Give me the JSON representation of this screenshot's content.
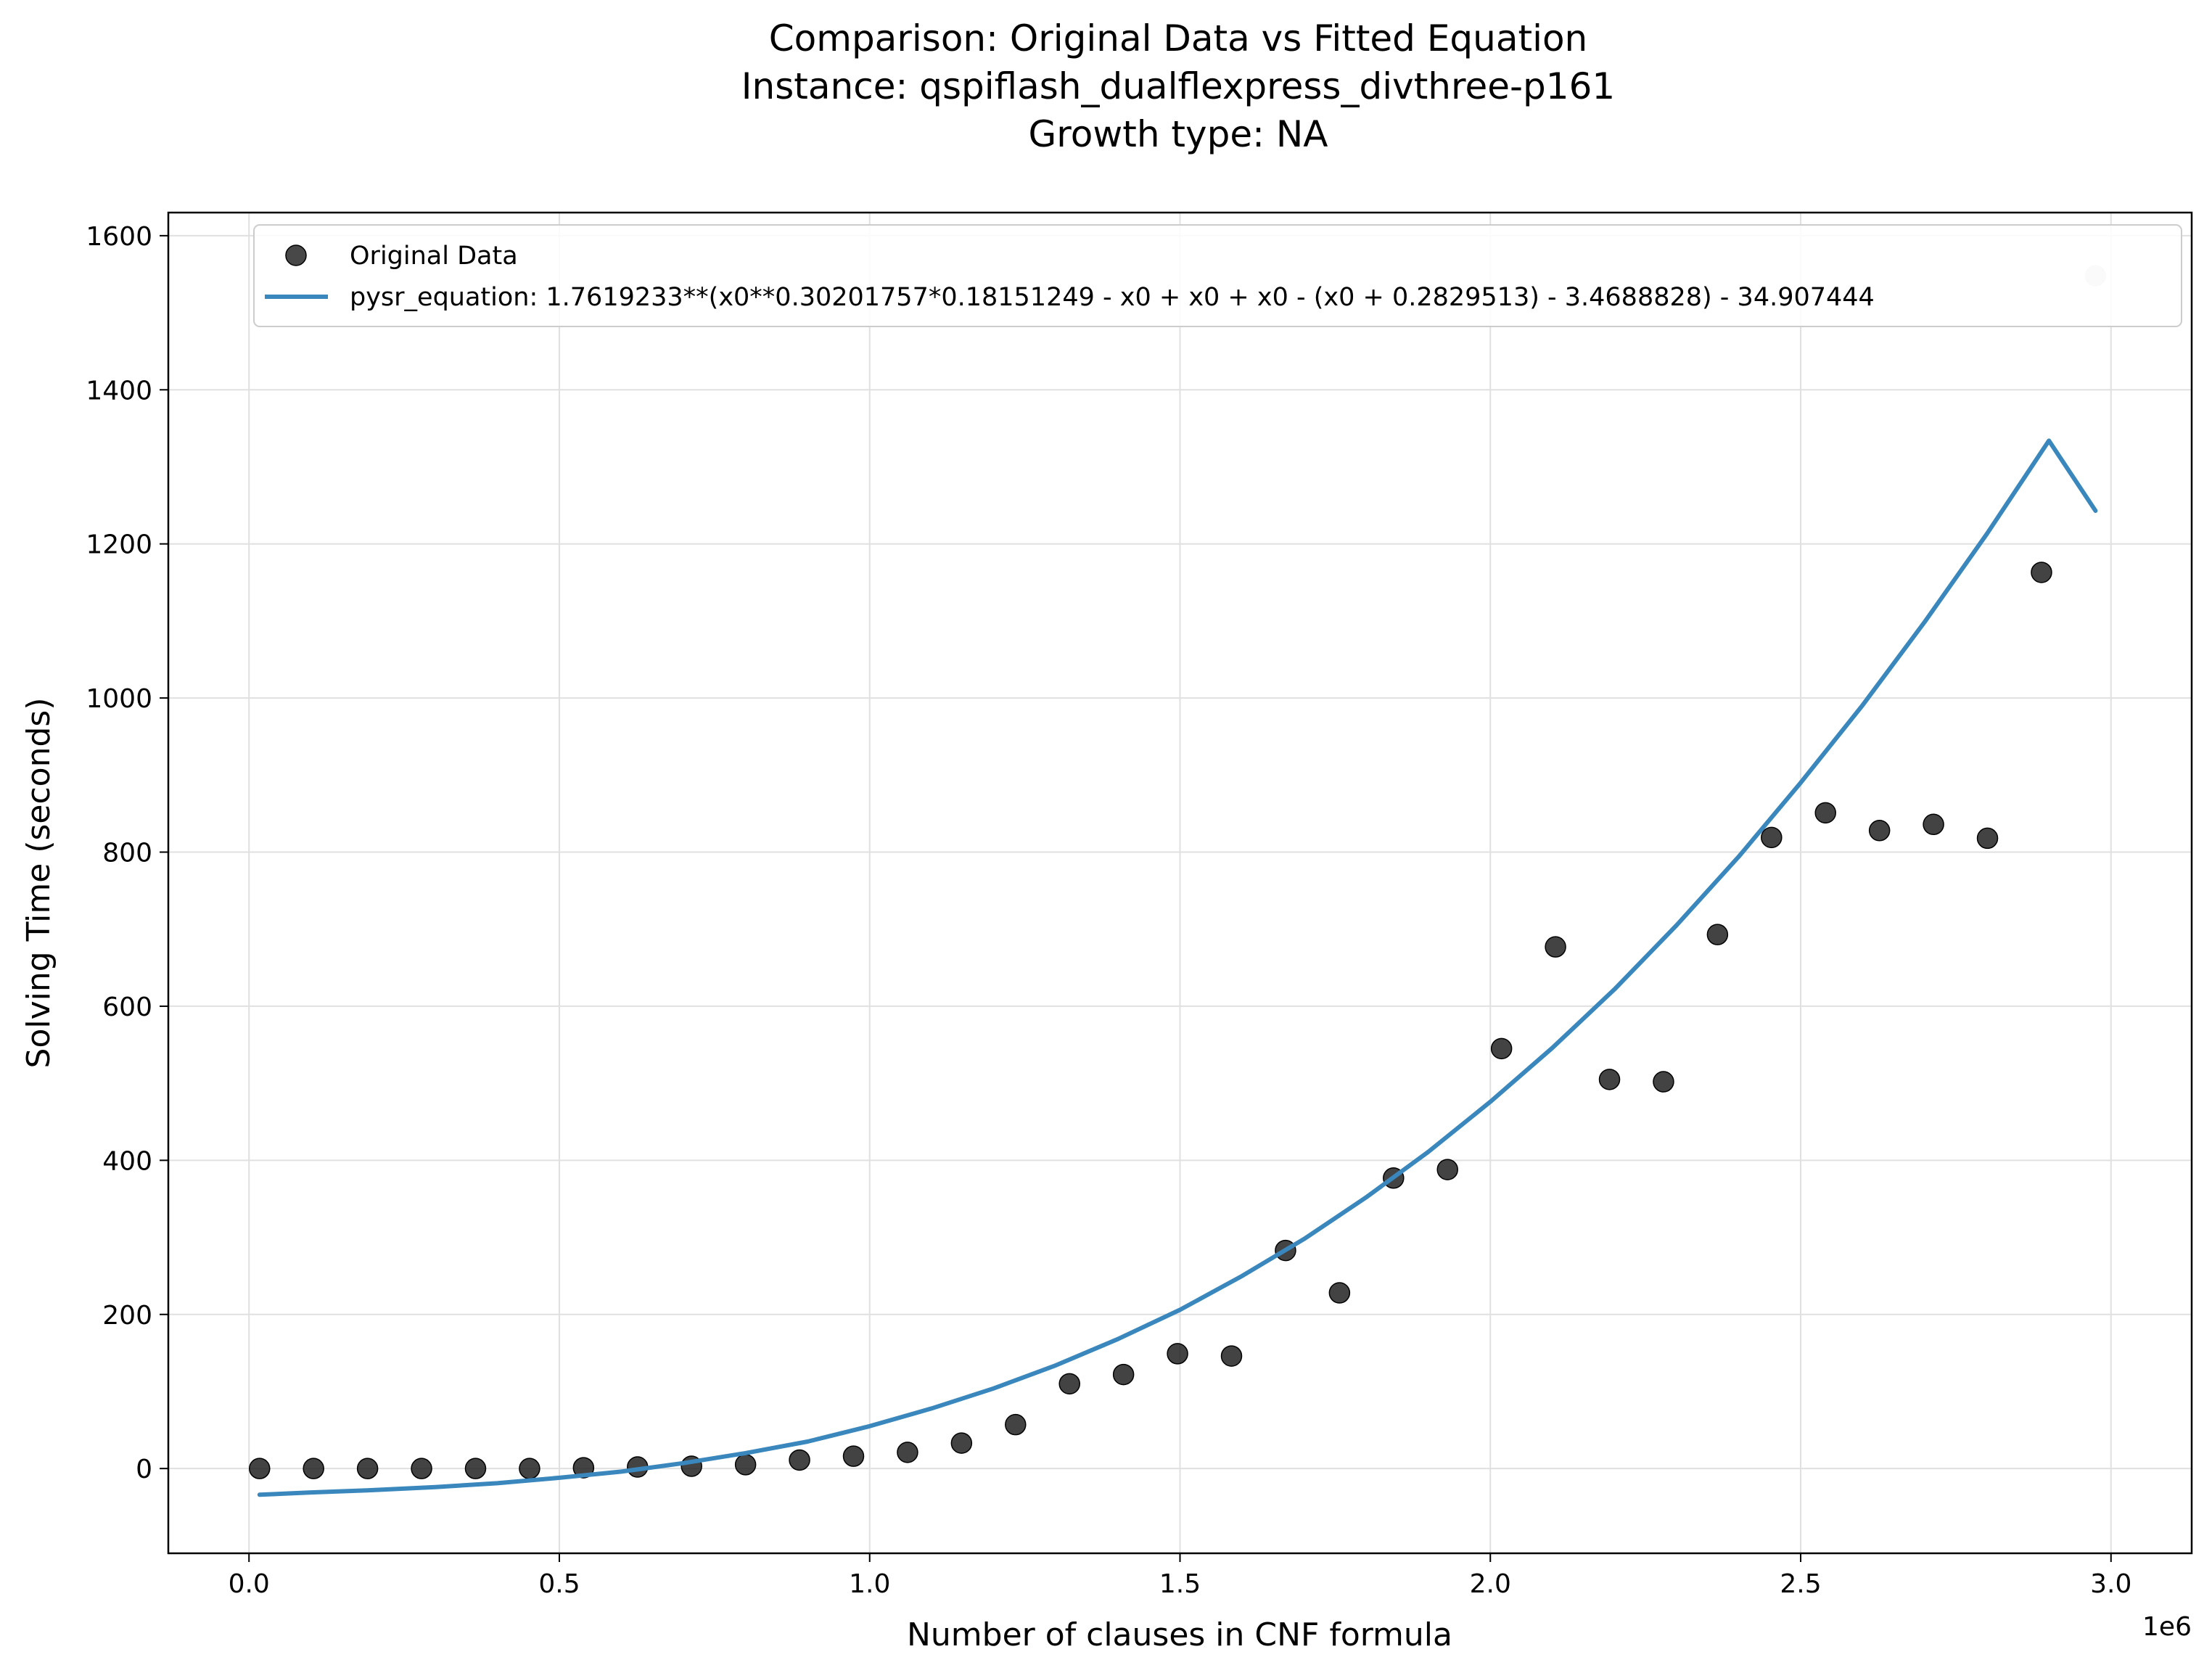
{
  "chart_data": {
    "type": "scatter",
    "title": [
      "Comparison: Original Data vs Fitted Equation",
      "Instance: qspiflash_dualflexpress_divthree-p161",
      "Growth type: NA"
    ],
    "xlabel": "Number of clauses in CNF formula",
    "ylabel": "Solving Time (seconds)",
    "x_offset_label": "1e6",
    "xlim": [
      -0.13,
      3.13
    ],
    "ylim": [
      -110,
      1630
    ],
    "xticks": [
      0.0,
      0.5,
      1.0,
      1.5,
      2.0,
      2.5,
      3.0
    ],
    "xtick_labels": [
      "0.0",
      "0.5",
      "1.0",
      "1.5",
      "2.0",
      "2.5",
      "3.0"
    ],
    "yticks": [
      0,
      200,
      400,
      600,
      800,
      1000,
      1200,
      1400,
      1600
    ],
    "ytick_labels": [
      "0",
      "200",
      "400",
      "600",
      "800",
      "1000",
      "1200",
      "1400",
      "1600"
    ],
    "grid": true,
    "legend_position": "top-left",
    "colors": {
      "scatter": "#1a1a1a",
      "line": "#3a87bd",
      "grid": "#e0e0e0"
    },
    "series": [
      {
        "name": "Original Data",
        "kind": "scatter",
        "x": [
          0.017,
          0.104,
          0.191,
          0.278,
          0.365,
          0.452,
          0.539,
          0.626,
          0.713,
          0.8,
          0.887,
          0.974,
          1.061,
          1.148,
          1.235,
          1.322,
          1.409,
          1.496,
          1.583,
          1.67,
          1.757,
          1.844,
          1.931,
          2.018,
          2.105,
          2.192,
          2.279,
          2.366,
          2.453,
          2.54,
          2.627,
          2.714,
          2.801,
          2.888,
          2.975
        ],
        "y": [
          0,
          0,
          0,
          0,
          0,
          0,
          1,
          2,
          3,
          5,
          11,
          16,
          21,
          33,
          57,
          110,
          122,
          149,
          146,
          283,
          228,
          377,
          388,
          545,
          677,
          505,
          502,
          693,
          819,
          851,
          828,
          836,
          818,
          1163,
          1548
        ]
      },
      {
        "name": "pysr_equation: 1.7619233**(x0**0.30201757*0.18151249 - x0 + x0 + x0 - (x0 + 0.2829513) - 3.4688828) - 34.907444",
        "kind": "line",
        "x": [
          0.017,
          0.1,
          0.2,
          0.3,
          0.4,
          0.5,
          0.6,
          0.7,
          0.8,
          0.9,
          1.0,
          1.1,
          1.2,
          1.3,
          1.4,
          1.5,
          1.6,
          1.7,
          1.8,
          1.9,
          2.0,
          2.1,
          2.2,
          2.3,
          2.4,
          2.5,
          2.6,
          2.7,
          2.8,
          2.9,
          2.975
        ],
        "y": [
          -34,
          -31,
          -28,
          -24,
          -19,
          -12,
          -4,
          7,
          20,
          35,
          55,
          78,
          104,
          134,
          168,
          206,
          250,
          298,
          352,
          411,
          476,
          546,
          622,
          705,
          794,
          890,
          991,
          1099,
          1213,
          1334,
          1243
        ]
      }
    ]
  }
}
